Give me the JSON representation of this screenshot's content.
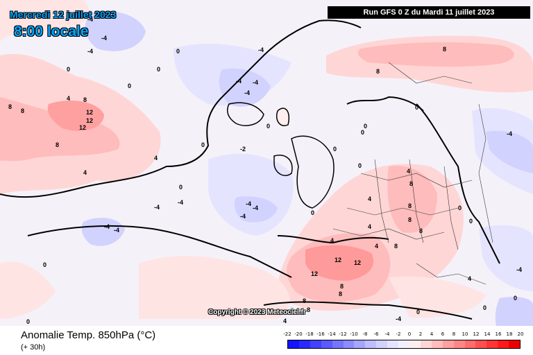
{
  "header": {
    "date": "Mercredi 12 juillet 2023",
    "time": "8:00 locale",
    "run": "Run GFS 0 Z du Mardi 11 juillet 2023"
  },
  "map": {
    "copyright": "Copyright © 2023 Meteociel.fr",
    "contour_labels": [
      {
        "t": "-4"
      },
      {
        "t": "-4"
      },
      {
        "t": "-4"
      },
      {
        "t": "-4"
      },
      {
        "t": "0"
      },
      {
        "t": "0"
      },
      {
        "t": "0"
      },
      {
        "t": "-4"
      },
      {
        "t": "-4"
      },
      {
        "t": "-4"
      },
      {
        "t": "-4"
      },
      {
        "t": "0"
      },
      {
        "t": "0"
      },
      {
        "t": "0"
      },
      {
        "t": "8"
      },
      {
        "t": "8"
      },
      {
        "t": "4"
      },
      {
        "t": "8"
      },
      {
        "t": "12"
      },
      {
        "t": "12"
      },
      {
        "t": "12"
      },
      {
        "t": "8"
      },
      {
        "t": "4"
      },
      {
        "t": "4"
      },
      {
        "t": "0"
      },
      {
        "t": "-2"
      },
      {
        "t": "-4"
      },
      {
        "t": "-4"
      },
      {
        "t": "-4"
      },
      {
        "t": "-4"
      },
      {
        "t": "-4"
      },
      {
        "t": "-4"
      },
      {
        "t": "-4"
      },
      {
        "t": "0"
      },
      {
        "t": "0"
      },
      {
        "t": "8"
      },
      {
        "t": "8"
      },
      {
        "t": "0"
      },
      {
        "t": "0"
      },
      {
        "t": "0"
      },
      {
        "t": "0"
      },
      {
        "t": "0"
      },
      {
        "t": "4"
      },
      {
        "t": "8"
      },
      {
        "t": "8"
      },
      {
        "t": "8"
      },
      {
        "t": "8"
      },
      {
        "t": "8"
      },
      {
        "t": "4"
      },
      {
        "t": "4"
      },
      {
        "t": "4"
      },
      {
        "t": "4"
      },
      {
        "t": "12"
      },
      {
        "t": "12"
      },
      {
        "t": "12"
      },
      {
        "t": "8"
      },
      {
        "t": "8"
      },
      {
        "t": "8"
      },
      {
        "t": "8"
      },
      {
        "t": "4"
      },
      {
        "t": "0"
      },
      {
        "t": "0"
      },
      {
        "t": "-4"
      },
      {
        "t": "-4"
      },
      {
        "t": "-4"
      },
      {
        "t": "0"
      },
      {
        "t": "0"
      },
      {
        "t": "0"
      },
      {
        "t": "4"
      },
      {
        "t": "0"
      }
    ]
  },
  "legend": {
    "parameter": "Anomalie Temp. 850hPa (°C)",
    "lead": "(+ 30h)",
    "ticks": [
      "-22",
      "-20",
      "-18",
      "-16",
      "-14",
      "-12",
      "-10",
      "-8",
      "-6",
      "-4",
      "-2",
      "0",
      "2",
      "4",
      "6",
      "8",
      "10",
      "12",
      "14",
      "16",
      "18",
      "20"
    ],
    "colors": [
      "#1414ff",
      "#2a2aff",
      "#4242ff",
      "#5a5aff",
      "#7474ff",
      "#8c8cff",
      "#a6a6ff",
      "#bebeff",
      "#d2d2ff",
      "#e4e4ff",
      "#f0f0ff",
      "#ffeeee",
      "#ffd6d6",
      "#ffbcbc",
      "#ffa0a0",
      "#ff8686",
      "#ff6c6c",
      "#ff5050",
      "#ff3434",
      "#ff1a1a",
      "#ee0000"
    ]
  }
}
